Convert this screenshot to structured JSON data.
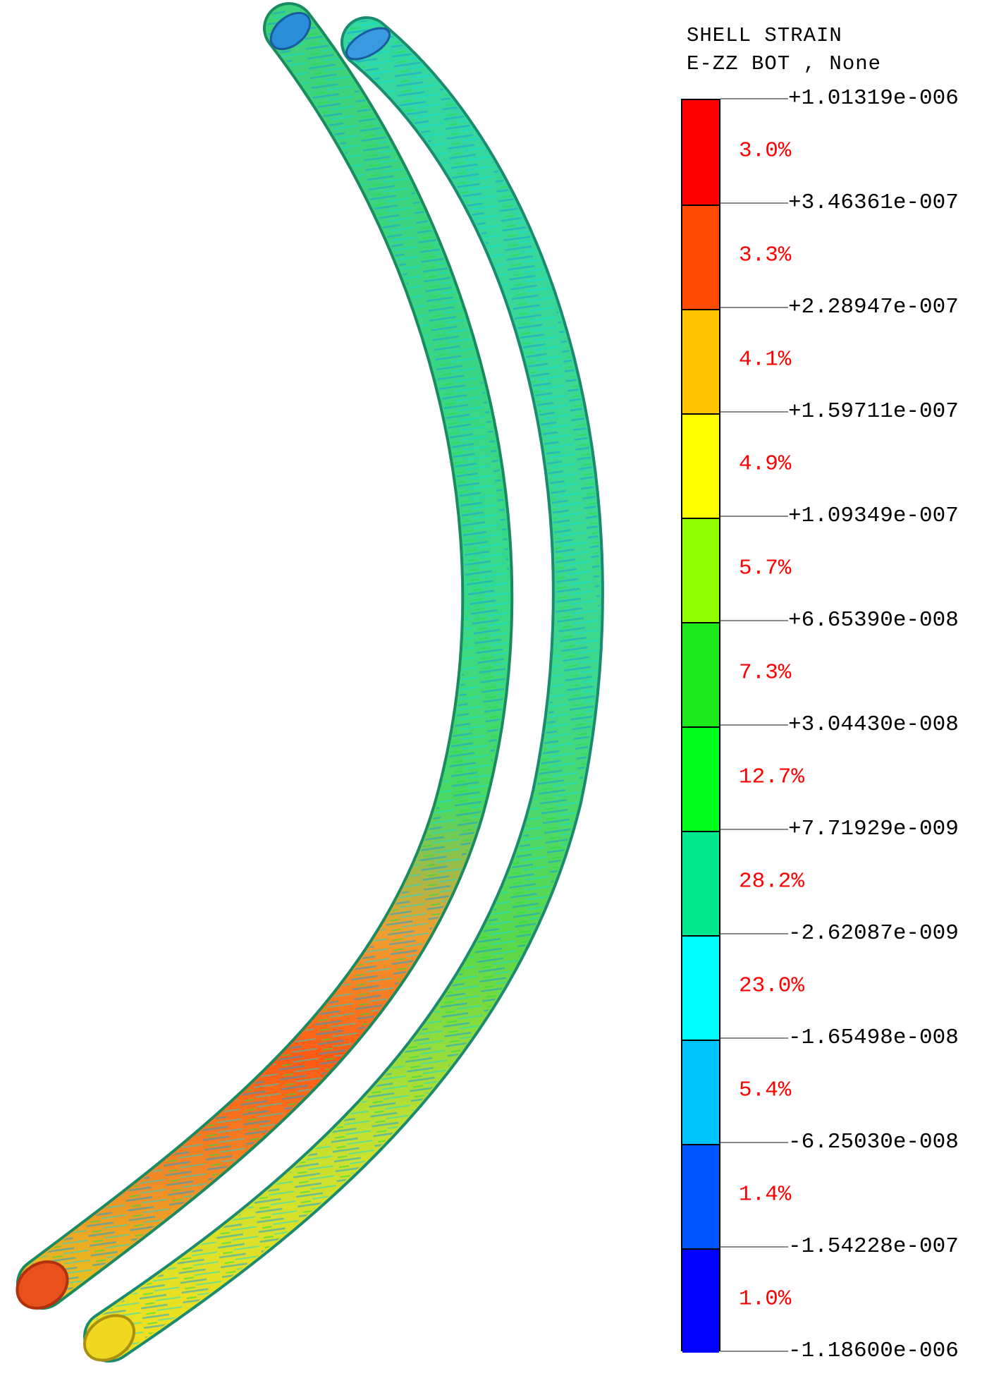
{
  "legend": {
    "title_line1": "SHELL STRAIN",
    "title_line2": "E-ZZ BOT , None",
    "ticks": [
      "+1.01319e-006",
      "+3.46361e-007",
      "+2.28947e-007",
      "+1.59711e-007",
      "+1.09349e-007",
      "+6.65390e-008",
      "+3.04430e-008",
      "+7.71929e-009",
      "-2.62087e-009",
      "-1.65498e-008",
      "-6.25030e-008",
      "-1.54228e-007",
      "-1.18600e-006"
    ],
    "bands": [
      {
        "percent": "3.0%",
        "color": "#ff0000"
      },
      {
        "percent": "3.3%",
        "color": "#ff4a00"
      },
      {
        "percent": "4.1%",
        "color": "#ffc400"
      },
      {
        "percent": "4.9%",
        "color": "#ffff00"
      },
      {
        "percent": "5.7%",
        "color": "#90ff00"
      },
      {
        "percent": "7.3%",
        "color": "#1ce81c"
      },
      {
        "percent": "12.7%",
        "color": "#00ff1c"
      },
      {
        "percent": "28.2%",
        "color": "#00e88e"
      },
      {
        "percent": "23.0%",
        "color": "#00ffff"
      },
      {
        "percent": "5.4%",
        "color": "#00c4ff"
      },
      {
        "percent": "1.4%",
        "color": "#0055ff"
      },
      {
        "percent": "1.0%",
        "color": "#0000ff"
      }
    ]
  }
}
